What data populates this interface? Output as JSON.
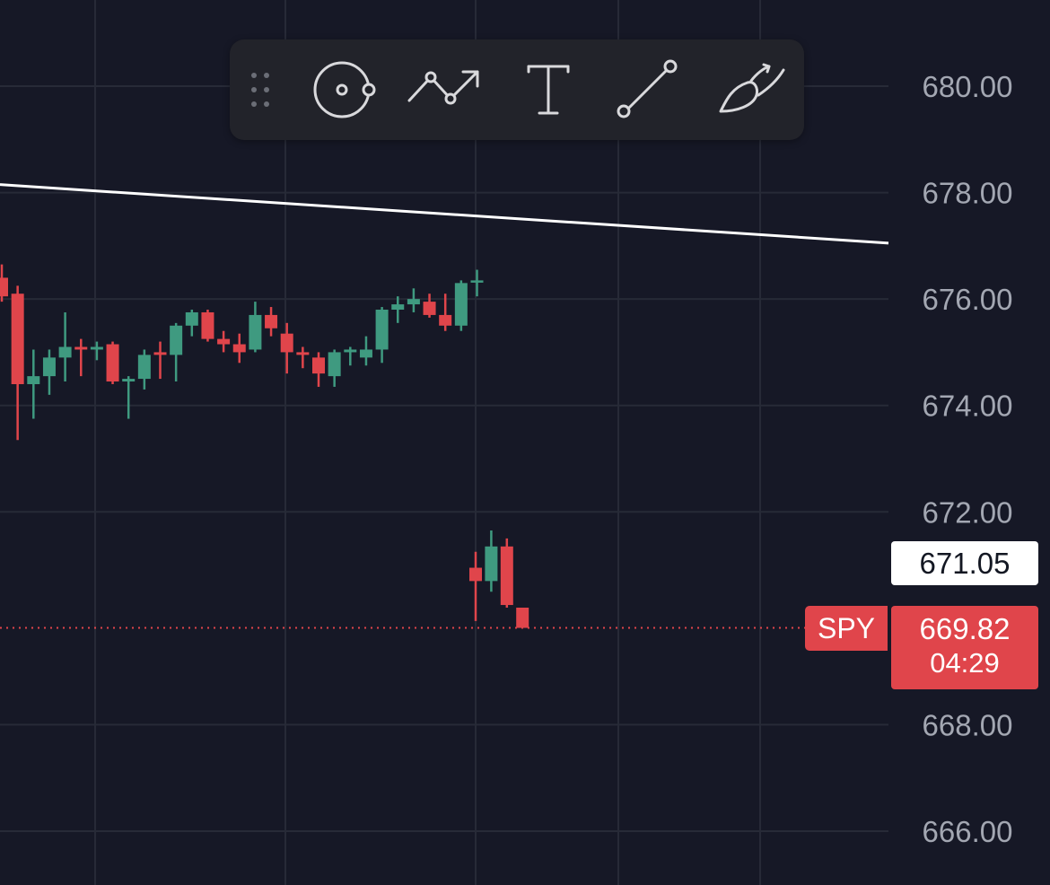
{
  "chart_data": {
    "type": "candlestick",
    "symbol": "SPY",
    "title": "",
    "ylim": [
      665.0,
      681.3
    ],
    "y_ticks": [
      "680.00",
      "678.00",
      "676.00",
      "674.00",
      "672.00",
      "668.00",
      "666.00"
    ],
    "grid": true,
    "colors": {
      "background": "#161826",
      "grid": "#272a37",
      "up": "#3f9a80",
      "down": "#e0454b",
      "trendline": "#ffffff"
    },
    "candles": [
      {
        "o": 676.4,
        "h": 676.65,
        "l": 675.95,
        "c": 676.05
      },
      {
        "o": 676.1,
        "h": 676.25,
        "l": 673.35,
        "c": 674.4
      },
      {
        "o": 674.4,
        "h": 675.05,
        "l": 673.75,
        "c": 674.55
      },
      {
        "o": 674.55,
        "h": 675.05,
        "l": 674.2,
        "c": 674.9
      },
      {
        "o": 674.9,
        "h": 675.75,
        "l": 674.45,
        "c": 675.1
      },
      {
        "o": 675.1,
        "h": 675.25,
        "l": 674.55,
        "c": 675.05
      },
      {
        "o": 675.05,
        "h": 675.2,
        "l": 674.85,
        "c": 675.1
      },
      {
        "o": 675.15,
        "h": 675.2,
        "l": 674.4,
        "c": 674.45
      },
      {
        "o": 674.45,
        "h": 674.55,
        "l": 673.75,
        "c": 674.5
      },
      {
        "o": 674.5,
        "h": 675.05,
        "l": 674.3,
        "c": 674.95
      },
      {
        "o": 675.0,
        "h": 675.2,
        "l": 674.5,
        "c": 674.95
      },
      {
        "o": 674.95,
        "h": 675.55,
        "l": 674.45,
        "c": 675.5
      },
      {
        "o": 675.5,
        "h": 675.8,
        "l": 675.3,
        "c": 675.75
      },
      {
        "o": 675.75,
        "h": 675.8,
        "l": 675.2,
        "c": 675.25
      },
      {
        "o": 675.25,
        "h": 675.4,
        "l": 675.0,
        "c": 675.15
      },
      {
        "o": 675.15,
        "h": 675.35,
        "l": 674.8,
        "c": 675.0
      },
      {
        "o": 675.05,
        "h": 675.95,
        "l": 675.0,
        "c": 675.7
      },
      {
        "o": 675.7,
        "h": 675.85,
        "l": 675.3,
        "c": 675.45
      },
      {
        "o": 675.35,
        "h": 675.55,
        "l": 674.6,
        "c": 675.0
      },
      {
        "o": 675.0,
        "h": 675.1,
        "l": 674.7,
        "c": 674.95
      },
      {
        "o": 674.9,
        "h": 675.0,
        "l": 674.35,
        "c": 674.6
      },
      {
        "o": 674.55,
        "h": 675.05,
        "l": 674.35,
        "c": 675.0
      },
      {
        "o": 675.0,
        "h": 675.1,
        "l": 674.75,
        "c": 675.05
      },
      {
        "o": 674.9,
        "h": 675.3,
        "l": 674.75,
        "c": 675.05
      },
      {
        "o": 675.05,
        "h": 675.85,
        "l": 674.8,
        "c": 675.8
      },
      {
        "o": 675.8,
        "h": 676.05,
        "l": 675.55,
        "c": 675.9
      },
      {
        "o": 675.9,
        "h": 676.2,
        "l": 675.75,
        "c": 676.0
      },
      {
        "o": 675.95,
        "h": 676.1,
        "l": 675.65,
        "c": 675.7
      },
      {
        "o": 675.7,
        "h": 676.1,
        "l": 675.4,
        "c": 675.5
      },
      {
        "o": 675.5,
        "h": 676.35,
        "l": 675.4,
        "c": 676.3
      },
      {
        "o": 676.35,
        "h": 676.55,
        "l": 676.05,
        "c": 676.35
      },
      {
        "o": 670.95,
        "h": 671.25,
        "l": 669.95,
        "c": 670.7
      },
      {
        "o": 670.7,
        "h": 671.65,
        "l": 670.5,
        "c": 671.35
      },
      {
        "o": 671.35,
        "h": 671.5,
        "l": 670.2,
        "c": 670.25
      },
      {
        "o": 670.2,
        "h": 670.2,
        "l": 669.82,
        "c": 669.82
      }
    ],
    "trendline": [
      {
        "y_at_left": 678.15
      },
      {
        "y_at_right": 677.05
      }
    ],
    "last_price": 669.82,
    "crosshair_price": "671.05",
    "last_price_label": "669.82",
    "countdown": "04:29"
  },
  "toolbar": {
    "tools": [
      {
        "name": "drag-handle-icon"
      },
      {
        "name": "anchored-circle-icon"
      },
      {
        "name": "path-icon"
      },
      {
        "name": "text-tool-icon"
      },
      {
        "name": "trend-line-icon"
      },
      {
        "name": "brush-icon"
      }
    ]
  }
}
